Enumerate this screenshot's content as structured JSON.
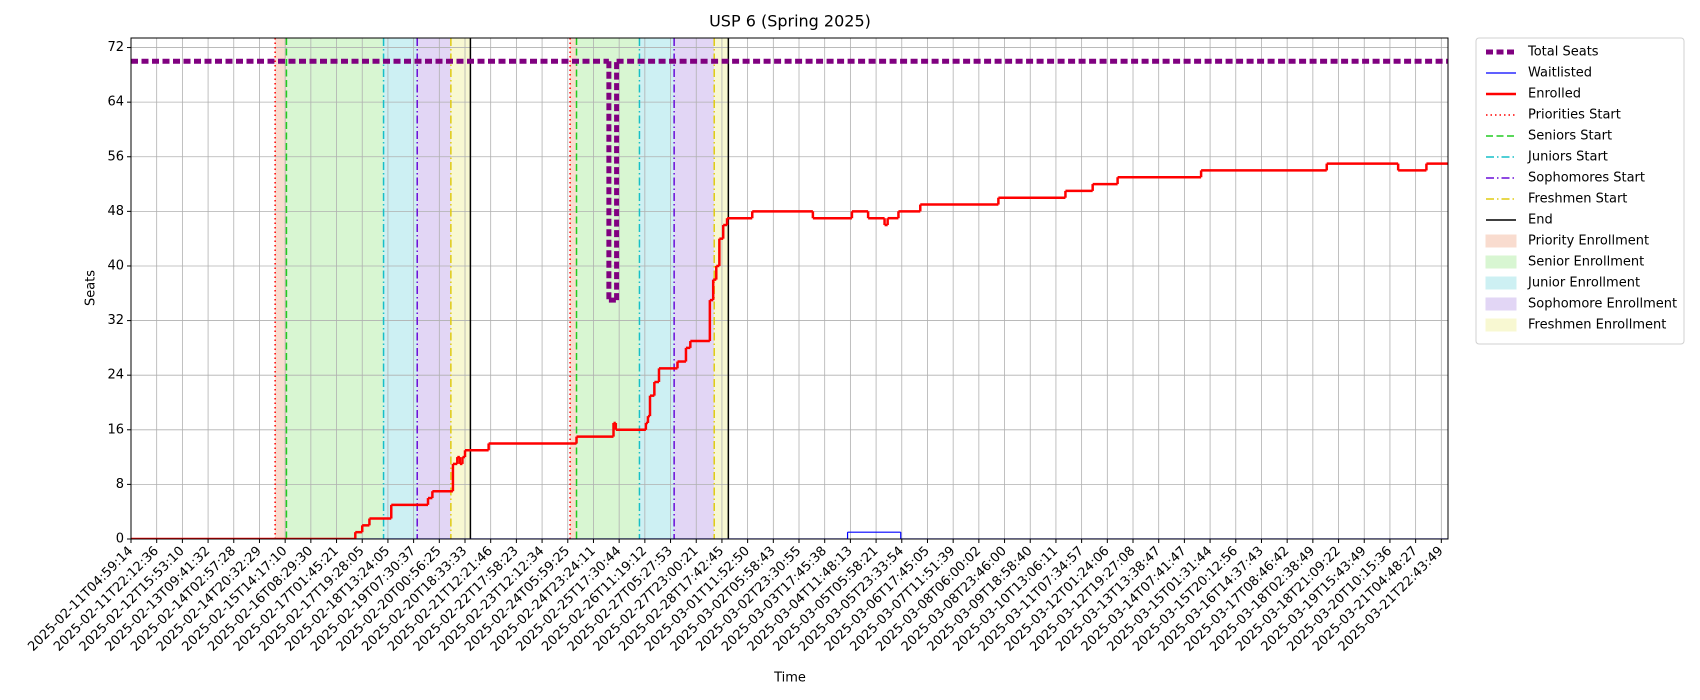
{
  "chart_data": {
    "type": "line",
    "title": "USP 6 (Spring 2025)",
    "xlabel": "Time",
    "ylabel": "Seats",
    "drawstyle": "steps-post",
    "grid": true,
    "legend": "outside-upper-right",
    "xlim": [
      0,
      51.26
    ],
    "ylim": [
      0,
      73.4
    ],
    "yticks": [
      0,
      8,
      16,
      24,
      32,
      40,
      48,
      56,
      64,
      72
    ],
    "xticks": [
      {
        "value": 0,
        "label": "2025-02-11T04:59:14"
      },
      {
        "value": 1,
        "label": "2025-02-11T22:12:36"
      },
      {
        "value": 2,
        "label": "2025-02-12T15:53:10"
      },
      {
        "value": 3,
        "label": "2025-02-13T09:41:32"
      },
      {
        "value": 4,
        "label": "2025-02-14T02:57:28"
      },
      {
        "value": 5,
        "label": "2025-02-14T20:32:29"
      },
      {
        "value": 6,
        "label": "2025-02-15T14:17:10"
      },
      {
        "value": 7,
        "label": "2025-02-16T08:29:30"
      },
      {
        "value": 8,
        "label": "2025-02-17T01:45:21"
      },
      {
        "value": 9,
        "label": "2025-02-17T19:28:05"
      },
      {
        "value": 10,
        "label": "2025-02-18T13:24:05"
      },
      {
        "value": 11,
        "label": "2025-02-19T07:30:37"
      },
      {
        "value": 12,
        "label": "2025-02-20T00:56:25"
      },
      {
        "value": 13,
        "label": "2025-02-20T18:33:33"
      },
      {
        "value": 14,
        "label": "2025-02-21T12:21:46"
      },
      {
        "value": 15,
        "label": "2025-02-22T17:58:23"
      },
      {
        "value": 16,
        "label": "2025-02-23T12:12:34"
      },
      {
        "value": 17,
        "label": "2025-02-24T05:59:25"
      },
      {
        "value": 18,
        "label": "2025-02-24T23:24:11"
      },
      {
        "value": 19,
        "label": "2025-02-25T17:30:44"
      },
      {
        "value": 20,
        "label": "2025-02-26T11:19:12"
      },
      {
        "value": 21,
        "label": "2025-02-27T05:27:53"
      },
      {
        "value": 22,
        "label": "2025-02-27T23:00:21"
      },
      {
        "value": 23,
        "label": "2025-02-28T17:42:45"
      },
      {
        "value": 24,
        "label": "2025-03-01T11:52:50"
      },
      {
        "value": 25,
        "label": "2025-03-02T05:58:43"
      },
      {
        "value": 26,
        "label": "2025-03-02T23:30:55"
      },
      {
        "value": 27,
        "label": "2025-03-03T17:45:38"
      },
      {
        "value": 28,
        "label": "2025-03-04T11:48:13"
      },
      {
        "value": 29,
        "label": "2025-03-05T05:58:21"
      },
      {
        "value": 30,
        "label": "2025-03-05T23:33:54"
      },
      {
        "value": 31,
        "label": "2025-03-06T17:45:05"
      },
      {
        "value": 32,
        "label": "2025-03-07T11:51:39"
      },
      {
        "value": 33,
        "label": "2025-03-08T06:00:02"
      },
      {
        "value": 34,
        "label": "2025-03-08T23:46:00"
      },
      {
        "value": 35,
        "label": "2025-03-09T18:58:40"
      },
      {
        "value": 36,
        "label": "2025-03-10T13:06:11"
      },
      {
        "value": 37,
        "label": "2025-03-11T07:34:57"
      },
      {
        "value": 38,
        "label": "2025-03-12T01:24:06"
      },
      {
        "value": 39,
        "label": "2025-03-12T19:27:08"
      },
      {
        "value": 40,
        "label": "2025-03-13T13:38:47"
      },
      {
        "value": 41,
        "label": "2025-03-14T07:41:47"
      },
      {
        "value": 42,
        "label": "2025-03-15T01:31:44"
      },
      {
        "value": 43,
        "label": "2025-03-15T20:12:56"
      },
      {
        "value": 44,
        "label": "2025-03-16T14:37:43"
      },
      {
        "value": 45,
        "label": "2025-03-17T08:46:42"
      },
      {
        "value": 46,
        "label": "2025-03-18T02:38:49"
      },
      {
        "value": 47,
        "label": "2025-03-18T21:09:22"
      },
      {
        "value": 48,
        "label": "2025-03-19T15:43:49"
      },
      {
        "value": 49,
        "label": "2025-03-20T10:15:36"
      },
      {
        "value": 50,
        "label": "2025-03-21T04:48:27"
      },
      {
        "value": 51,
        "label": "2025-03-21T22:43:49"
      }
    ],
    "series": [
      {
        "name": "Total Seats",
        "color": "#800080",
        "linewidth": 5,
        "linestyle": "dashed",
        "x": [
          0,
          18.6,
          18.9
        ],
        "values": [
          70,
          35,
          70
        ]
      },
      {
        "name": "Waitlisted",
        "color": "#0000ff",
        "linewidth": 1.2,
        "linestyle": "solid",
        "x": [
          0,
          27.89,
          29.96
        ],
        "values": [
          0,
          1,
          0
        ]
      },
      {
        "name": "Enrolled",
        "color": "#ff0000",
        "linewidth": 2.5,
        "linestyle": "solid",
        "x": [
          0,
          8.73,
          9.0,
          9.28,
          10.13,
          11.56,
          11.73,
          12.53,
          12.7,
          12.8,
          12.9,
          13.0,
          13.92,
          17.34,
          18.78,
          18.87,
          20.04,
          20.12,
          20.2,
          20.37,
          20.55,
          21.27,
          21.6,
          21.77,
          22.53,
          22.66,
          22.78,
          22.9,
          23.05,
          23.2,
          24.18,
          26.54,
          28.06,
          28.69,
          29.33,
          29.45,
          29.87,
          30.72,
          33.76,
          36.37,
          37.43,
          38.4,
          41.65,
          46.54,
          49.32,
          50.42
        ],
        "values": [
          0,
          1,
          2,
          3,
          5,
          6,
          7,
          11,
          12,
          11,
          12,
          13,
          14,
          15,
          17,
          16,
          17,
          18,
          21,
          23,
          25,
          26,
          28,
          29,
          35,
          38,
          40,
          44,
          46,
          47,
          48,
          47,
          48,
          47,
          46,
          47,
          48,
          49,
          50,
          51,
          52,
          53,
          54,
          55,
          54,
          55
        ]
      }
    ],
    "vlines": [
      {
        "name": "Priorities Start",
        "color": "#ff0000",
        "linestyle": "dotted",
        "x": [
          5.61,
          17.09
        ]
      },
      {
        "name": "Seniors Start",
        "color": "#22cc22",
        "linestyle": "dashed",
        "x": [
          6.05,
          17.34
        ]
      },
      {
        "name": "Juniors Start",
        "color": "#17bfc8",
        "linestyle": "dashdot",
        "x": [
          9.83,
          19.79
        ]
      },
      {
        "name": "Sophomores Start",
        "color": "#6a0dd8",
        "linestyle": "dashdot",
        "x": [
          11.14,
          21.14
        ]
      },
      {
        "name": "Freshmen Start",
        "color": "#e0cc10",
        "linestyle": "dashdot",
        "x": [
          12.45,
          22.7
        ]
      },
      {
        "name": "End",
        "color": "#000000",
        "linestyle": "solid",
        "x": [
          13.21,
          23.25
        ]
      }
    ],
    "spans": [
      {
        "name": "Priority Enrollment",
        "color": "#f9dccf",
        "ranges": [
          [
            5.61,
            6.05
          ],
          [
            17.09,
            17.34
          ]
        ]
      },
      {
        "name": "Senior Enrollment",
        "color": "#d8f6d2",
        "ranges": [
          [
            6.05,
            9.83
          ],
          [
            17.34,
            19.79
          ]
        ]
      },
      {
        "name": "Junior Enrollment",
        "color": "#cdf0f3",
        "ranges": [
          [
            9.83,
            11.14
          ],
          [
            19.79,
            21.14
          ]
        ]
      },
      {
        "name": "Sophomore Enrollment",
        "color": "#e2d6f5",
        "ranges": [
          [
            11.14,
            12.45
          ],
          [
            21.14,
            22.7
          ]
        ]
      },
      {
        "name": "Freshmen Enrollment",
        "color": "#f8f8d2",
        "ranges": [
          [
            12.45,
            13.21
          ],
          [
            22.7,
            23.25
          ]
        ]
      }
    ]
  }
}
